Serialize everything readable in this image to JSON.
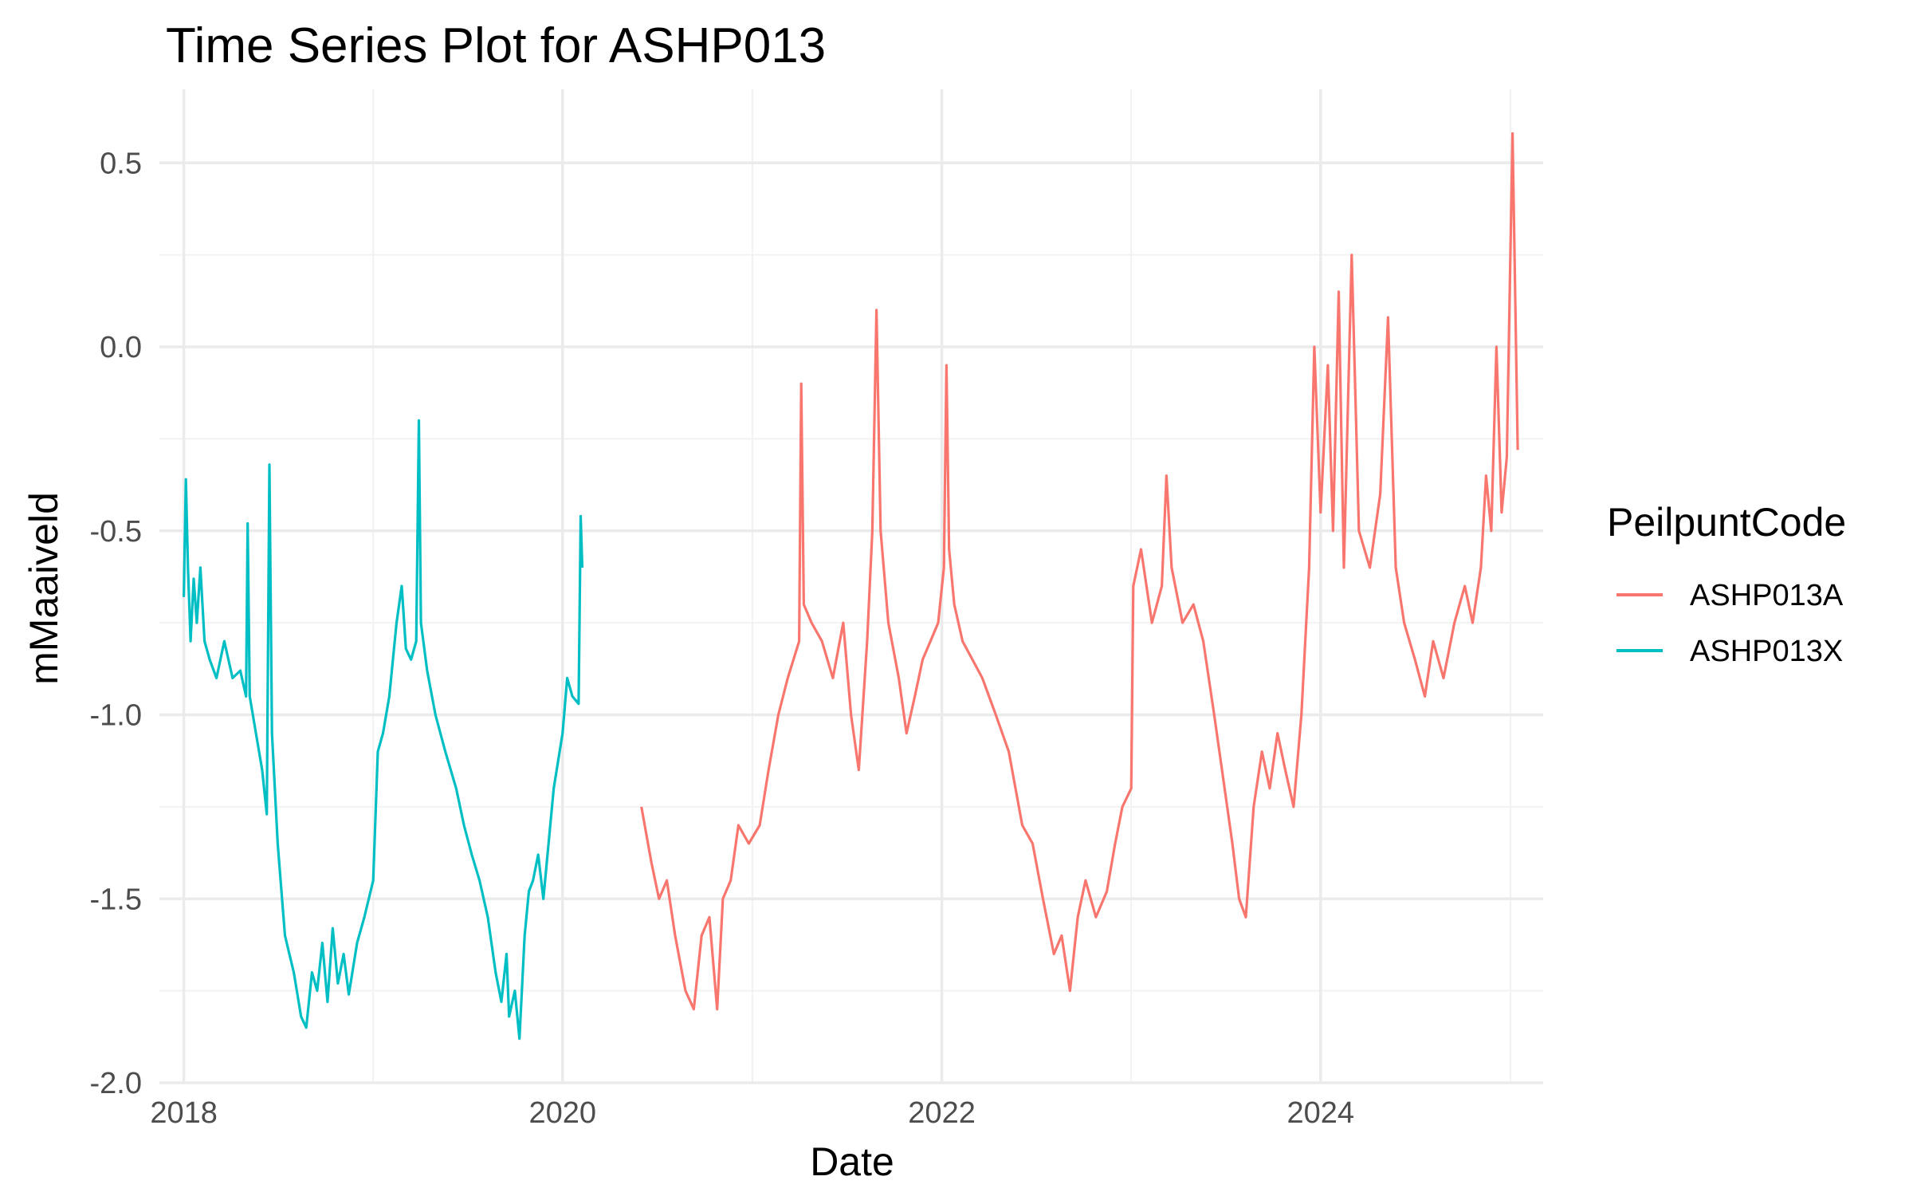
{
  "chart_data": {
    "type": "line",
    "title": "Time Series Plot for ASHP013",
    "xlabel": "Date",
    "ylabel": "mMaaiveld",
    "x_type": "date",
    "xlim": [
      "2017-11-15",
      "2025-03-05"
    ],
    "ylim": [
      -2.0,
      0.7
    ],
    "x_ticks": [
      "2018",
      "2020",
      "2022",
      "2024"
    ],
    "y_ticks": [
      "0.5",
      "0.0",
      "-0.5",
      "-1.0",
      "-1.5",
      "-2.0"
    ],
    "grid": true,
    "legend": {
      "title": "PeilpuntCode",
      "position": "right"
    },
    "series": [
      {
        "name": "ASHP013X",
        "color": "#00BFC4",
        "points": [
          [
            "2018-01-01",
            -0.68
          ],
          [
            "2018-01-05",
            -0.36
          ],
          [
            "2018-01-09",
            -0.6
          ],
          [
            "2018-01-14",
            -0.8
          ],
          [
            "2018-01-20",
            -0.63
          ],
          [
            "2018-01-26",
            -0.75
          ],
          [
            "2018-02-02",
            -0.6
          ],
          [
            "2018-02-10",
            -0.8
          ],
          [
            "2018-02-20",
            -0.85
          ],
          [
            "2018-03-05",
            -0.9
          ],
          [
            "2018-03-20",
            -0.8
          ],
          [
            "2018-04-05",
            -0.9
          ],
          [
            "2018-04-20",
            -0.88
          ],
          [
            "2018-05-01",
            -0.95
          ],
          [
            "2018-05-04",
            -0.48
          ],
          [
            "2018-05-08",
            -0.95
          ],
          [
            "2018-05-20",
            -1.05
          ],
          [
            "2018-06-01",
            -1.15
          ],
          [
            "2018-06-10",
            -1.27
          ],
          [
            "2018-06-15",
            -0.32
          ],
          [
            "2018-06-20",
            -1.05
          ],
          [
            "2018-07-01",
            -1.35
          ],
          [
            "2018-07-15",
            -1.6
          ],
          [
            "2018-08-01",
            -1.7
          ],
          [
            "2018-08-15",
            -1.82
          ],
          [
            "2018-08-25",
            -1.85
          ],
          [
            "2018-09-05",
            -1.7
          ],
          [
            "2018-09-15",
            -1.75
          ],
          [
            "2018-09-25",
            -1.62
          ],
          [
            "2018-10-05",
            -1.78
          ],
          [
            "2018-10-15",
            -1.58
          ],
          [
            "2018-10-25",
            -1.73
          ],
          [
            "2018-11-05",
            -1.65
          ],
          [
            "2018-11-15",
            -1.76
          ],
          [
            "2018-12-01",
            -1.62
          ],
          [
            "2018-12-15",
            -1.55
          ],
          [
            "2019-01-01",
            -1.45
          ],
          [
            "2019-01-10",
            -1.1
          ],
          [
            "2019-01-20",
            -1.05
          ],
          [
            "2019-02-01",
            -0.95
          ],
          [
            "2019-02-15",
            -0.75
          ],
          [
            "2019-02-25",
            -0.65
          ],
          [
            "2019-03-05",
            -0.82
          ],
          [
            "2019-03-15",
            -0.85
          ],
          [
            "2019-03-25",
            -0.8
          ],
          [
            "2019-03-30",
            -0.2
          ],
          [
            "2019-04-03",
            -0.75
          ],
          [
            "2019-04-15",
            -0.88
          ],
          [
            "2019-05-01",
            -1.0
          ],
          [
            "2019-05-20",
            -1.1
          ],
          [
            "2019-06-10",
            -1.2
          ],
          [
            "2019-06-25",
            -1.3
          ],
          [
            "2019-07-10",
            -1.38
          ],
          [
            "2019-07-25",
            -1.45
          ],
          [
            "2019-08-10",
            -1.55
          ],
          [
            "2019-08-25",
            -1.7
          ],
          [
            "2019-09-05",
            -1.78
          ],
          [
            "2019-09-15",
            -1.65
          ],
          [
            "2019-09-20",
            -1.82
          ],
          [
            "2019-10-01",
            -1.75
          ],
          [
            "2019-10-10",
            -1.88
          ],
          [
            "2019-10-20",
            -1.6
          ],
          [
            "2019-10-28",
            -1.48
          ],
          [
            "2019-11-05",
            -1.45
          ],
          [
            "2019-11-15",
            -1.38
          ],
          [
            "2019-11-25",
            -1.5
          ],
          [
            "2019-12-05",
            -1.35
          ],
          [
            "2019-12-15",
            -1.2
          ],
          [
            "2020-01-01",
            -1.05
          ],
          [
            "2020-01-10",
            -0.9
          ],
          [
            "2020-01-20",
            -0.95
          ],
          [
            "2020-02-01",
            -0.97
          ],
          [
            "2020-02-05",
            -0.46
          ],
          [
            "2020-02-08",
            -0.6
          ]
        ]
      },
      {
        "name": "ASHP013A",
        "color": "#F8766D",
        "points": [
          [
            "2020-06-01",
            -1.25
          ],
          [
            "2020-06-20",
            -1.4
          ],
          [
            "2020-07-05",
            -1.5
          ],
          [
            "2020-07-20",
            -1.45
          ],
          [
            "2020-08-05",
            -1.6
          ],
          [
            "2020-08-25",
            -1.75
          ],
          [
            "2020-09-10",
            -1.8
          ],
          [
            "2020-09-25",
            -1.6
          ],
          [
            "2020-10-10",
            -1.55
          ],
          [
            "2020-10-25",
            -1.8
          ],
          [
            "2020-11-05",
            -1.5
          ],
          [
            "2020-11-20",
            -1.45
          ],
          [
            "2020-12-05",
            -1.3
          ],
          [
            "2020-12-25",
            -1.35
          ],
          [
            "2021-01-15",
            -1.3
          ],
          [
            "2021-02-01",
            -1.15
          ],
          [
            "2021-02-20",
            -1.0
          ],
          [
            "2021-03-10",
            -0.9
          ],
          [
            "2021-04-01",
            -0.8
          ],
          [
            "2021-04-05",
            -0.1
          ],
          [
            "2021-04-10",
            -0.7
          ],
          [
            "2021-04-25",
            -0.75
          ],
          [
            "2021-05-15",
            -0.8
          ],
          [
            "2021-06-05",
            -0.9
          ],
          [
            "2021-06-25",
            -0.75
          ],
          [
            "2021-07-10",
            -1.0
          ],
          [
            "2021-07-25",
            -1.15
          ],
          [
            "2021-08-10",
            -0.8
          ],
          [
            "2021-08-20",
            -0.5
          ],
          [
            "2021-08-28",
            0.1
          ],
          [
            "2021-09-05",
            -0.5
          ],
          [
            "2021-09-20",
            -0.75
          ],
          [
            "2021-10-10",
            -0.9
          ],
          [
            "2021-10-25",
            -1.05
          ],
          [
            "2021-11-10",
            -0.95
          ],
          [
            "2021-11-25",
            -0.85
          ],
          [
            "2021-12-10",
            -0.8
          ],
          [
            "2021-12-25",
            -0.75
          ],
          [
            "2022-01-05",
            -0.6
          ],
          [
            "2022-01-10",
            -0.05
          ],
          [
            "2022-01-15",
            -0.55
          ],
          [
            "2022-01-25",
            -0.7
          ],
          [
            "2022-02-10",
            -0.8
          ],
          [
            "2022-03-01",
            -0.85
          ],
          [
            "2022-03-20",
            -0.9
          ],
          [
            "2022-04-15",
            -1.0
          ],
          [
            "2022-05-10",
            -1.1
          ],
          [
            "2022-06-05",
            -1.3
          ],
          [
            "2022-06-25",
            -1.35
          ],
          [
            "2022-07-15",
            -1.5
          ],
          [
            "2022-08-05",
            -1.65
          ],
          [
            "2022-08-20",
            -1.6
          ],
          [
            "2022-09-05",
            -1.75
          ],
          [
            "2022-09-20",
            -1.55
          ],
          [
            "2022-10-05",
            -1.45
          ],
          [
            "2022-10-25",
            -1.55
          ],
          [
            "2022-11-15",
            -1.48
          ],
          [
            "2022-12-01",
            -1.35
          ],
          [
            "2022-12-15",
            -1.25
          ],
          [
            "2023-01-01",
            -1.2
          ],
          [
            "2023-01-05",
            -0.65
          ],
          [
            "2023-01-20",
            -0.55
          ],
          [
            "2023-02-10",
            -0.75
          ],
          [
            "2023-03-01",
            -0.65
          ],
          [
            "2023-03-10",
            -0.35
          ],
          [
            "2023-03-20",
            -0.6
          ],
          [
            "2023-04-10",
            -0.75
          ],
          [
            "2023-05-01",
            -0.7
          ],
          [
            "2023-05-20",
            -0.8
          ],
          [
            "2023-06-10",
            -1.0
          ],
          [
            "2023-06-25",
            -1.15
          ],
          [
            "2023-07-15",
            -1.35
          ],
          [
            "2023-07-28",
            -1.5
          ],
          [
            "2023-08-10",
            -1.55
          ],
          [
            "2023-08-25",
            -1.25
          ],
          [
            "2023-09-10",
            -1.1
          ],
          [
            "2023-09-25",
            -1.2
          ],
          [
            "2023-10-10",
            -1.05
          ],
          [
            "2023-10-25",
            -1.15
          ],
          [
            "2023-11-10",
            -1.25
          ],
          [
            "2023-11-25",
            -1.0
          ],
          [
            "2023-12-10",
            -0.6
          ],
          [
            "2023-12-20",
            0.0
          ],
          [
            "2024-01-01",
            -0.45
          ],
          [
            "2024-01-15",
            -0.05
          ],
          [
            "2024-01-25",
            -0.5
          ],
          [
            "2024-02-05",
            0.15
          ],
          [
            "2024-02-15",
            -0.6
          ],
          [
            "2024-03-01",
            0.25
          ],
          [
            "2024-03-15",
            -0.5
          ],
          [
            "2024-04-05",
            -0.6
          ],
          [
            "2024-04-25",
            -0.4
          ],
          [
            "2024-05-10",
            0.08
          ],
          [
            "2024-05-25",
            -0.6
          ],
          [
            "2024-06-10",
            -0.75
          ],
          [
            "2024-07-01",
            -0.85
          ],
          [
            "2024-07-20",
            -0.95
          ],
          [
            "2024-08-05",
            -0.8
          ],
          [
            "2024-08-25",
            -0.9
          ],
          [
            "2024-09-15",
            -0.75
          ],
          [
            "2024-10-05",
            -0.65
          ],
          [
            "2024-10-20",
            -0.75
          ],
          [
            "2024-11-05",
            -0.6
          ],
          [
            "2024-11-15",
            -0.35
          ],
          [
            "2024-11-25",
            -0.5
          ],
          [
            "2024-12-05",
            0.0
          ],
          [
            "2024-12-15",
            -0.45
          ],
          [
            "2024-12-25",
            -0.3
          ],
          [
            "2025-01-05",
            0.58
          ],
          [
            "2025-01-15",
            -0.28
          ]
        ]
      }
    ]
  }
}
